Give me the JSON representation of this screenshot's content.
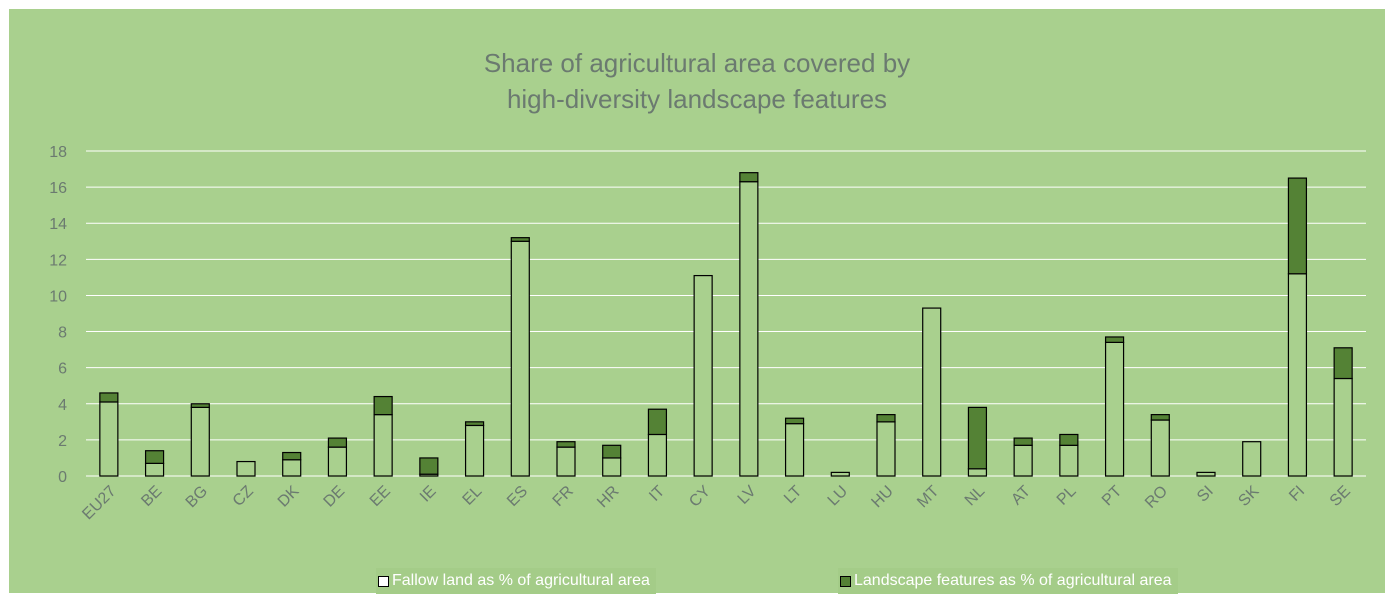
{
  "chart_data": {
    "type": "bar",
    "stacked": true,
    "title_lines": [
      "Share of agricultural area covered by",
      "high-diversity landscape features"
    ],
    "categories": [
      "EU27",
      "BE",
      "BG",
      "CZ",
      "DK",
      "DE",
      "EE",
      "IE",
      "EL",
      "ES",
      "FR",
      "HR",
      "IT",
      "CY",
      "LV",
      "LT",
      "LU",
      "HU",
      "MT",
      "NL",
      "AT",
      "PL",
      "PT",
      "RO",
      "SI",
      "SK",
      "FI",
      "SE"
    ],
    "series": [
      {
        "name": "Fallow land as % of agricultural area",
        "color": "#a9d08e",
        "values": [
          4.1,
          0.7,
          3.8,
          0.8,
          0.9,
          1.6,
          3.4,
          0.1,
          2.8,
          13.0,
          1.6,
          1.0,
          2.3,
          11.1,
          16.3,
          2.9,
          0.2,
          3.0,
          9.3,
          0.4,
          1.7,
          1.7,
          7.4,
          3.1,
          0.2,
          1.9,
          11.2,
          5.4
        ]
      },
      {
        "name": "Landscape features as % of agricultural area",
        "color": "#548235",
        "values": [
          0.5,
          0.7,
          0.2,
          0.0,
          0.4,
          0.5,
          1.0,
          0.9,
          0.2,
          0.2,
          0.3,
          0.7,
          1.4,
          0.0,
          0.5,
          0.3,
          0.0,
          0.4,
          0.0,
          3.4,
          0.4,
          0.6,
          0.3,
          0.3,
          0.0,
          0.0,
          5.3,
          1.7
        ]
      }
    ],
    "ylim": [
      0,
      18
    ],
    "yticks": [
      0,
      2,
      4,
      6,
      8,
      10,
      12,
      14,
      16,
      18
    ],
    "grid": true,
    "legend_position": "bottom",
    "text_color": "#6b7a70",
    "grid_color": "#ffffff",
    "background": "#a9d08e"
  }
}
